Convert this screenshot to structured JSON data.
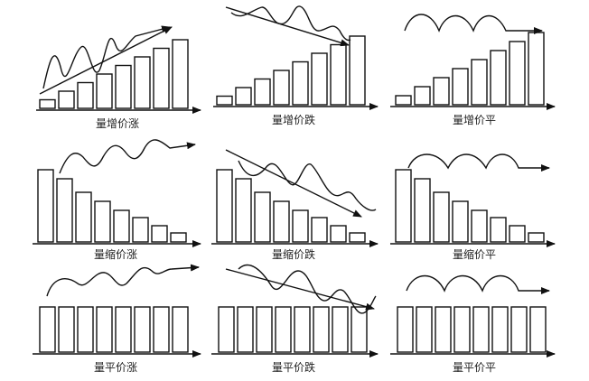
{
  "panels": [
    {
      "label": "量增价涨",
      "volume": "increasing",
      "price": "rising"
    },
    {
      "label": "量增价跌",
      "volume": "increasing",
      "price": "falling"
    },
    {
      "label": "量增价平",
      "volume": "increasing",
      "price": "flat"
    },
    {
      "label": "量缩价涨",
      "volume": "decreasing",
      "price": "rising"
    },
    {
      "label": "量缩价跌",
      "volume": "decreasing",
      "price": "falling"
    },
    {
      "label": "量缩价平",
      "volume": "decreasing",
      "price": "flat"
    },
    {
      "label": "量平价涨",
      "volume": "flat",
      "price": "rising"
    },
    {
      "label": "量平价跌",
      "volume": "flat",
      "price": "falling"
    },
    {
      "label": "量平价平",
      "volume": "flat",
      "price": "flat"
    }
  ],
  "bar_count": 8,
  "volume_levels": {
    "increasing": [
      1,
      2,
      3,
      4,
      5,
      6,
      7,
      8
    ],
    "decreasing": [
      8,
      7,
      5.5,
      4.5,
      3.5,
      2.7,
      1.8,
      1
    ],
    "flat": [
      5,
      5,
      5,
      5,
      5,
      5,
      5,
      5
    ]
  },
  "colors": {
    "ink": "#111111",
    "background": "#ffffff"
  }
}
